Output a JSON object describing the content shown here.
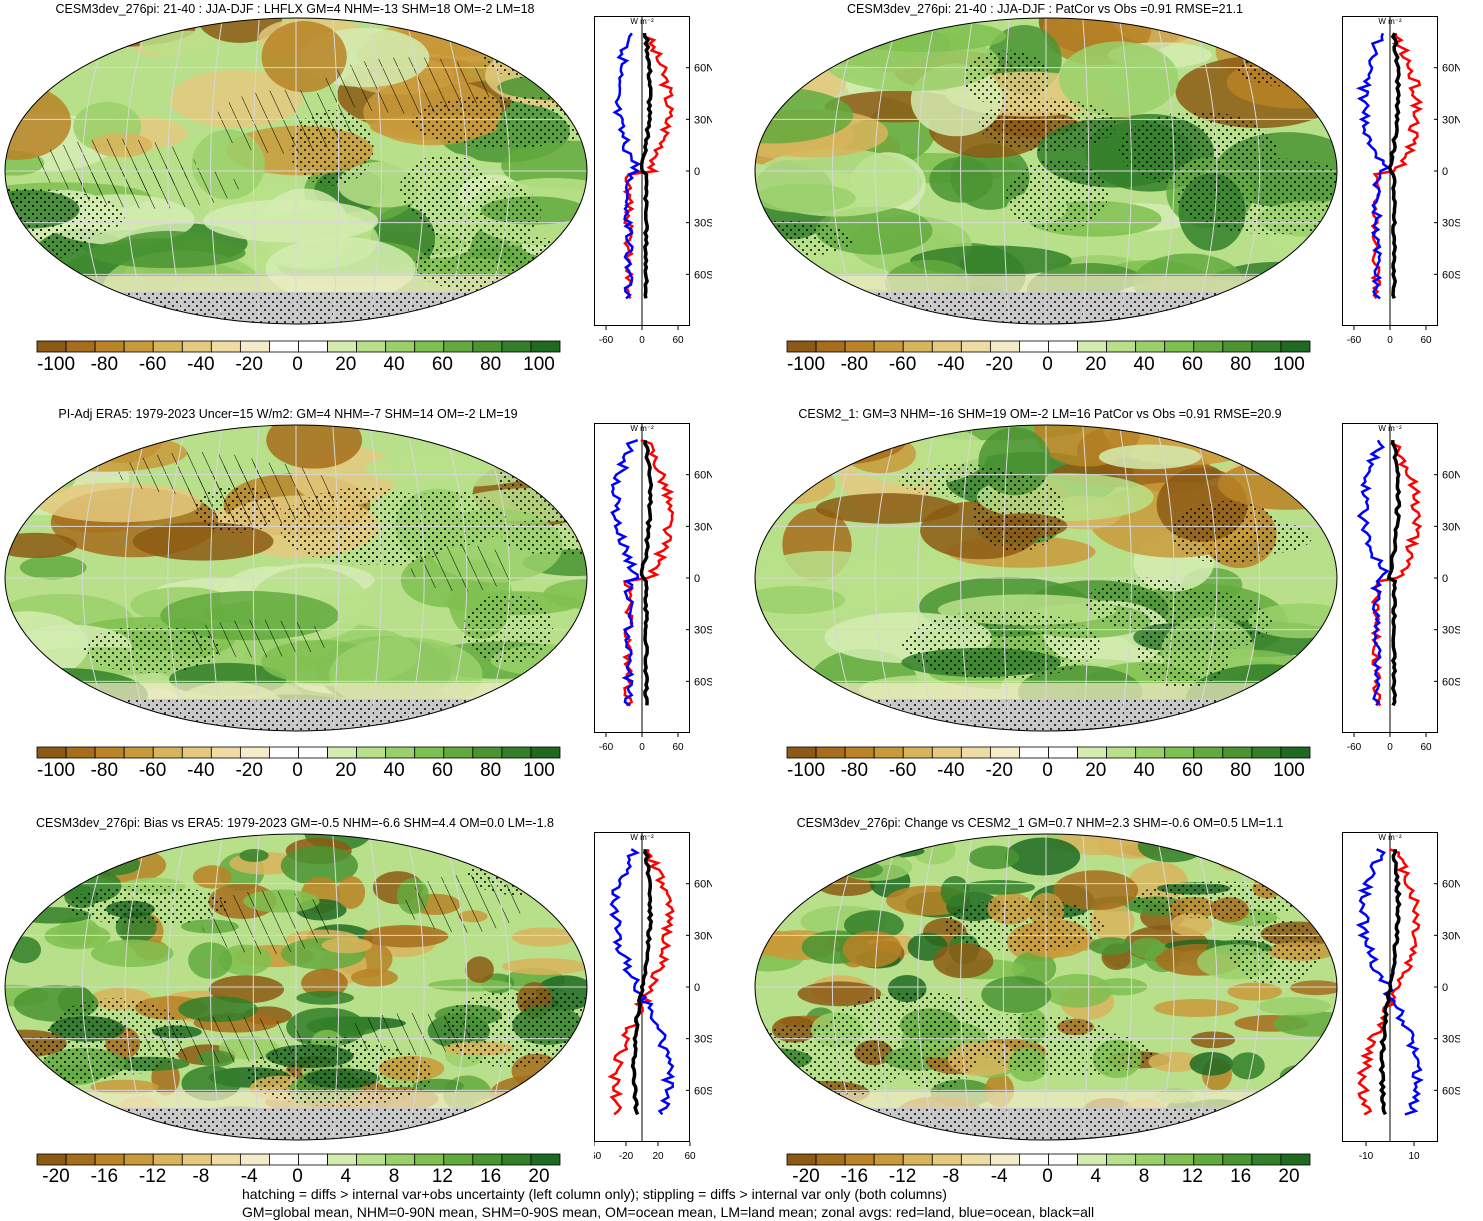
{
  "palette": {
    "scale": [
      "#8c5a14",
      "#a66d1c",
      "#b98326",
      "#c99a3a",
      "#d8b45c",
      "#e4c97e",
      "#eedca4",
      "#f4ebc8",
      "#ffffff",
      "#ffffff",
      "#d4ecb0",
      "#b8e08a",
      "#9ad06a",
      "#7fbf50",
      "#63aa3e",
      "#4a9432",
      "#337f2a",
      "#1f6a22"
    ],
    "land_gray": "#c8c8c8",
    "red": "#ff0000",
    "blue": "#0000ff",
    "black": "#000000"
  },
  "panels": [
    {
      "title": "CESM3dev_276pi: 21-40 : JJA-DJF : LHFLX GM=4 NHM=-13 SHM=18 OM=-2 LM=18",
      "colorbar_labels": [
        "-100",
        "-80",
        "-60",
        "-40",
        "-20",
        "0",
        "20",
        "40",
        "60",
        "80",
        "100"
      ],
      "zonal_units": "W m⁻²",
      "lat_ticks": [
        "60N",
        "30N",
        "0",
        "30S",
        "60S"
      ],
      "x_ticks": [
        "-60",
        "0",
        "60"
      ],
      "zonal_range": [
        -80,
        80
      ],
      "hatching": true
    },
    {
      "title": "CESM3dev_276pi: 21-40 : JJA-DJF : PatCor vs Obs =0.91 RMSE=21.1",
      "colorbar_labels": [
        "-100",
        "-80",
        "-60",
        "-40",
        "-20",
        "0",
        "20",
        "40",
        "60",
        "80",
        "100"
      ],
      "zonal_units": "W m⁻²",
      "lat_ticks": [
        "60N",
        "30N",
        "0",
        "30S",
        "60S"
      ],
      "x_ticks": [
        "-60",
        "0",
        "60"
      ],
      "zonal_range": [
        -80,
        80
      ],
      "hatching": false
    },
    {
      "title": "PI-Adj ERA5: 1979-2023 Uncer=15 W/m2: GM=4 NHM=-7 SHM=14 OM=-2 LM=19",
      "colorbar_labels": [
        "-100",
        "-80",
        "-60",
        "-40",
        "-20",
        "0",
        "20",
        "40",
        "60",
        "80",
        "100"
      ],
      "zonal_units": "W m⁻²",
      "lat_ticks": [
        "60N",
        "30N",
        "0",
        "30S",
        "60S"
      ],
      "x_ticks": [
        "-60",
        "0",
        "60"
      ],
      "zonal_range": [
        -80,
        80
      ],
      "hatching": true
    },
    {
      "title": "CESM2_1: GM=3 NHM=-16 SHM=19 OM=-2 LM=16 PatCor vs Obs =0.91 RMSE=20.9",
      "colorbar_labels": [
        "-100",
        "-80",
        "-60",
        "-40",
        "-20",
        "0",
        "20",
        "40",
        "60",
        "80",
        "100"
      ],
      "zonal_units": "W m⁻²",
      "lat_ticks": [
        "60N",
        "30N",
        "0",
        "30S",
        "60S"
      ],
      "x_ticks": [
        "-60",
        "0",
        "60"
      ],
      "zonal_range": [
        -80,
        80
      ],
      "hatching": false
    },
    {
      "title": "CESM3dev_276pi: Bias vs ERA5: 1979-2023 GM=-0.5 NHM=-6.6 SHM=4.4 OM=0.0 LM=-1.8",
      "colorbar_labels": [
        "-20",
        "-16",
        "-12",
        "-8",
        "-4",
        "0",
        "4",
        "8",
        "12",
        "16",
        "20"
      ],
      "zonal_units": "W m⁻²",
      "lat_ticks": [
        "60N",
        "30N",
        "0",
        "30S",
        "60S"
      ],
      "x_ticks": [
        "-60",
        "-20",
        "20",
        "60"
      ],
      "zonal_range": [
        -60,
        60
      ],
      "hatching": true
    },
    {
      "title": "CESM3dev_276pi: Change vs CESM2_1 GM=0.7 NHM=2.3 SHM=-0.6 OM=0.5 LM=1.1",
      "colorbar_labels": [
        "-20",
        "-16",
        "-12",
        "-8",
        "-4",
        "0",
        "4",
        "8",
        "12",
        "16",
        "20"
      ],
      "zonal_units": "W m⁻²",
      "lat_ticks": [
        "60N",
        "30N",
        "0",
        "30S",
        "60S"
      ],
      "x_ticks": [
        "-10",
        "10"
      ],
      "zonal_range": [
        -20,
        20
      ],
      "hatching": false
    }
  ],
  "footer": {
    "line1": "hatching = diffs > internal var+obs uncertainty (left column only); stippling = diffs > internal var only (both columns)",
    "line2": "GM=global mean, NHM=0-90N mean, SHM=0-90S mean, OM=ocean mean, LM=land mean; zonal avgs: red=land, blue=ocean, black=all"
  }
}
